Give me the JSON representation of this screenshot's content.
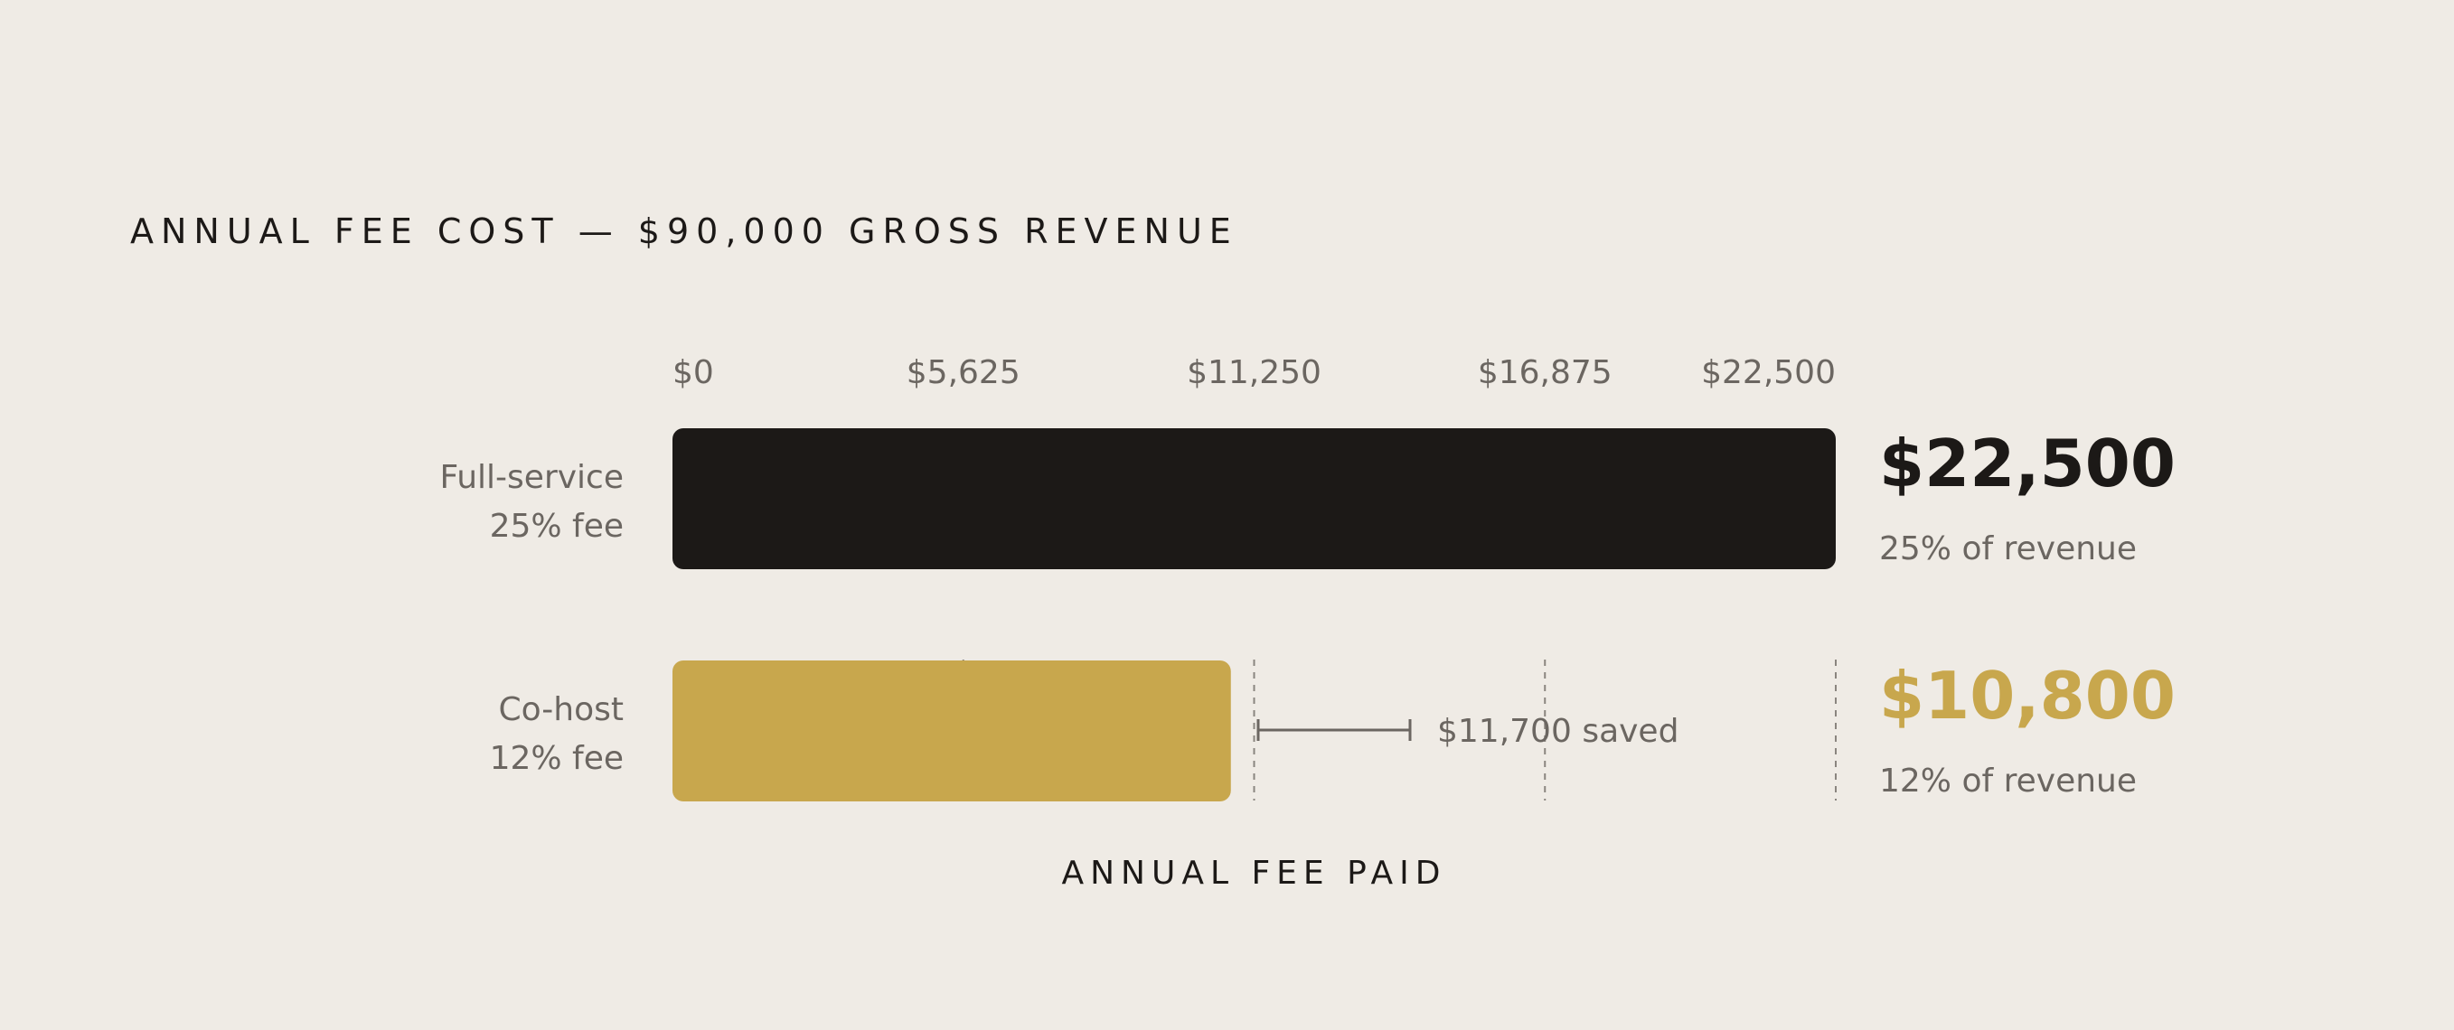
{
  "chart_data": {
    "type": "bar",
    "orientation": "horizontal",
    "title": "ANNUAL FEE COST — $90,000 GROSS REVENUE",
    "xlabel": "ANNUAL FEE PAID",
    "ylabel": "",
    "xlim": [
      0,
      22500
    ],
    "x_ticks": [
      0,
      5625,
      11250,
      16875,
      22500
    ],
    "x_tick_labels": [
      "$0",
      "$5,625",
      "$11,250",
      "$16,875",
      "$22,500"
    ],
    "grid": "vertical dashed gridlines",
    "legend": "none",
    "categories": [
      {
        "line1": "Full-service",
        "line2": "25% fee"
      },
      {
        "line1": "Co-host",
        "line2": "12% fee"
      }
    ],
    "values": [
      22500,
      10800
    ],
    "value_labels": [
      "$22,500",
      "$10,800"
    ],
    "sub_labels": [
      "25% of revenue",
      "12% of revenue"
    ],
    "colors": [
      "#1c1917",
      "#c8a74d"
    ],
    "annotation": {
      "text": "$11,700 saved",
      "value": 11700
    }
  },
  "colors": {
    "background": "#efebe5",
    "text_dark": "#1c1917",
    "text_muted": "#6b6661",
    "gold": "#c8a74d",
    "grid": "#8a857f"
  }
}
